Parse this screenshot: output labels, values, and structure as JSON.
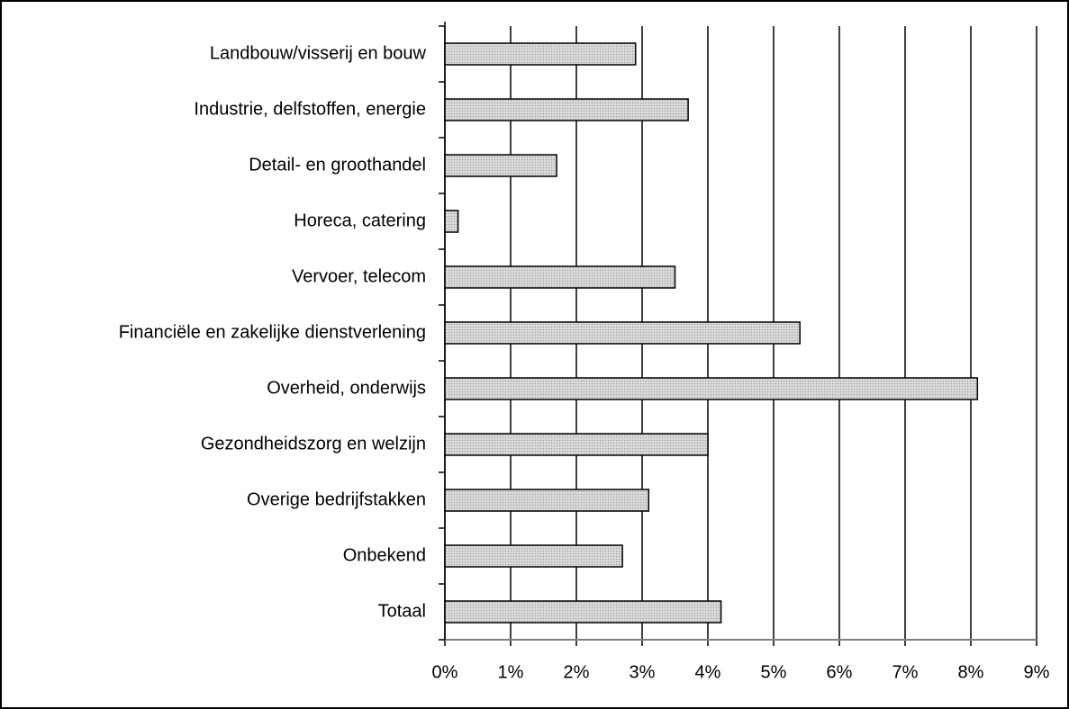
{
  "chart_data": {
    "type": "hbar",
    "categories": [
      "Landbouw/visserij en bouw",
      "Industrie, delfstoffen, energie",
      "Detail- en groothandel",
      "Horeca, catering",
      "Vervoer, telecom",
      "Financiële en zakelijke dienstverlening",
      "Overheid, onderwijs",
      "Gezondheidszorg en welzijn",
      "Overige bedrijfstakken",
      "Onbekend",
      "Totaal"
    ],
    "values": [
      2.9,
      3.7,
      1.7,
      0.2,
      3.5,
      5.4,
      8.1,
      4.0,
      3.1,
      2.7,
      4.2
    ],
    "color": "#c8c8c8",
    "xlim": [
      0,
      9
    ],
    "xticks": [
      {
        "value": 0,
        "label": "0%"
      },
      {
        "value": 1,
        "label": "1%"
      },
      {
        "value": 2,
        "label": "2%"
      },
      {
        "value": 3,
        "label": "3%"
      },
      {
        "value": 4,
        "label": "4%"
      },
      {
        "value": 5,
        "label": "5%"
      },
      {
        "value": 6,
        "label": "6%"
      },
      {
        "value": 7,
        "label": "7%"
      },
      {
        "value": 8,
        "label": "8%"
      },
      {
        "value": 9,
        "label": "9%"
      }
    ],
    "grid": true
  }
}
